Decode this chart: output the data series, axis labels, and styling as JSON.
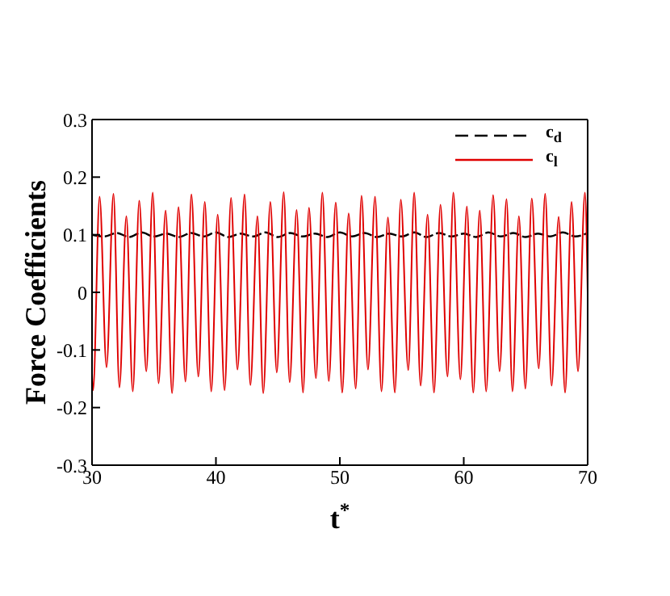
{
  "chart_data": {
    "type": "line",
    "xlabel": "t$^{*}$",
    "ylabel": "Force Coefficients",
    "xlim": [
      30,
      70
    ],
    "ylim": [
      -0.3,
      0.3
    ],
    "xticks": [
      30,
      40,
      50,
      60,
      70
    ],
    "yticks": [
      -0.3,
      -0.2,
      -0.1,
      0,
      0.1,
      0.2,
      0.3
    ],
    "legend": "top right",
    "marker": "none",
    "series": [
      {
        "name": "c$_{d}$",
        "color": "#000000",
        "line_style": "dashed",
        "x": [
          30,
          31,
          32,
          33,
          34,
          35,
          36,
          37,
          38,
          39,
          40,
          41,
          42,
          43,
          44,
          45,
          46,
          47,
          48,
          49,
          50,
          51,
          52,
          53,
          54,
          55,
          56,
          57,
          58,
          59,
          60,
          61,
          62,
          63,
          64,
          65,
          66,
          67,
          68,
          69,
          70
        ],
        "values": [
          0.1,
          0.097,
          0.103,
          0.096,
          0.104,
          0.097,
          0.102,
          0.096,
          0.103,
          0.097,
          0.104,
          0.096,
          0.102,
          0.097,
          0.104,
          0.096,
          0.103,
          0.097,
          0.102,
          0.096,
          0.104,
          0.097,
          0.103,
          0.096,
          0.102,
          0.097,
          0.104,
          0.096,
          0.103,
          0.097,
          0.102,
          0.096,
          0.104,
          0.097,
          0.103,
          0.096,
          0.102,
          0.097,
          0.104,
          0.097,
          0.103
        ]
      },
      {
        "name": "c$_{l}$",
        "color": "#e00000",
        "line_style": "solid",
        "x": [
          30,
          30.09,
          30.61,
          31.17,
          31.73,
          32.21,
          32.77,
          33.29,
          33.81,
          34.38,
          34.9,
          35.37,
          35.94,
          36.46,
          36.98,
          37.54,
          38.02,
          38.58,
          39.1,
          39.62,
          40.14,
          40.7,
          41.22,
          41.74,
          42.31,
          42.78,
          43.35,
          43.82,
          44.39,
          44.91,
          45.47,
          45.95,
          46.51,
          47.03,
          47.51,
          48.07,
          48.59,
          49.11,
          49.67,
          50.19,
          50.71,
          51.28,
          51.75,
          52.27,
          52.84,
          53.36,
          53.88,
          54.44,
          54.92,
          55.52,
          56.0,
          56.52,
          57.08,
          57.6,
          58.12,
          58.69,
          59.16,
          59.73,
          60.25,
          60.77,
          61.29,
          61.81,
          62.37,
          62.89,
          63.45,
          63.93,
          64.45,
          64.97,
          65.49,
          66.05,
          66.57,
          67.09,
          67.66,
          68.18,
          68.7,
          69.22,
          69.78,
          70
        ],
        "values": [
          -0.14,
          -0.17,
          0.166,
          -0.13,
          0.171,
          -0.165,
          0.132,
          -0.172,
          0.159,
          -0.137,
          0.173,
          -0.158,
          0.142,
          -0.175,
          0.148,
          -0.155,
          0.17,
          -0.146,
          0.157,
          -0.172,
          0.135,
          -0.17,
          0.164,
          -0.134,
          0.17,
          -0.161,
          0.132,
          -0.175,
          0.157,
          -0.139,
          0.174,
          -0.156,
          0.143,
          -0.174,
          0.147,
          -0.149,
          0.173,
          -0.154,
          0.156,
          -0.174,
          0.137,
          -0.167,
          0.168,
          -0.134,
          0.166,
          -0.172,
          0.13,
          -0.174,
          0.161,
          -0.135,
          0.173,
          -0.162,
          0.135,
          -0.174,
          0.152,
          -0.146,
          0.173,
          -0.151,
          0.149,
          -0.174,
          0.142,
          -0.172,
          0.169,
          -0.137,
          0.162,
          -0.172,
          0.132,
          -0.167,
          0.163,
          -0.132,
          0.171,
          -0.162,
          0.131,
          -0.174,
          0.157,
          -0.137,
          0.173,
          0.0
        ]
      }
    ]
  }
}
